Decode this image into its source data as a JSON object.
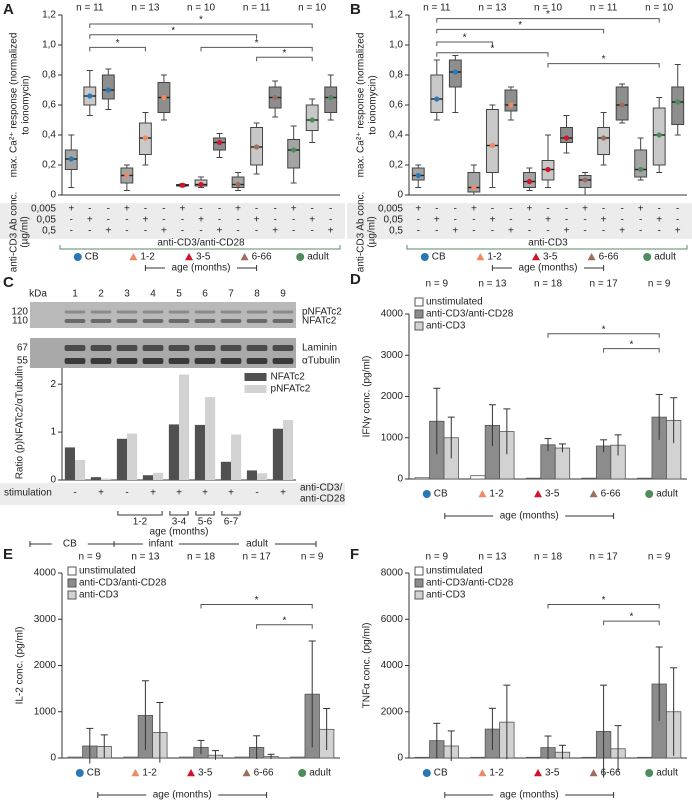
{
  "chart_data": [
    {
      "type": "box",
      "panel": "A",
      "ylabel": [
        "max. Ca²⁺ response (normalized",
        "to ionomycin)"
      ],
      "ylim": [
        0,
        1.2
      ],
      "yticks": [
        0,
        {
          "value": 0.2,
          "label": "0,2"
        },
        {
          "value": 0.4,
          "label": "0,4"
        },
        {
          "value": 0.6,
          "label": "0,6"
        },
        {
          "value": 0.8,
          "label": "0,8"
        },
        {
          "value": 1.0,
          "label": "1,0"
        },
        {
          "value": 1.2,
          "label": "1,2"
        }
      ],
      "series": [
        {
          "name": "CB",
          "color": "#2878b5",
          "marker": "circle",
          "n": "n = 11",
          "boxes": [
            {
              "min": 0.05,
              "q1": 0.17,
              "median": 0.24,
              "q3": 0.3,
              "max": 0.4
            },
            {
              "min": 0.53,
              "q1": 0.6,
              "median": 0.66,
              "q3": 0.72,
              "max": 0.83
            },
            {
              "min": 0.57,
              "q1": 0.64,
              "median": 0.7,
              "q3": 0.8,
              "max": 0.84
            }
          ]
        },
        {
          "name": "1-2",
          "color": "#ee8a62",
          "marker": "triangle",
          "n": "n = 13",
          "boxes": [
            {
              "min": 0.03,
              "q1": 0.08,
              "median": 0.13,
              "q3": 0.18,
              "max": 0.2
            },
            {
              "min": 0.2,
              "q1": 0.27,
              "median": 0.38,
              "q3": 0.48,
              "max": 0.55
            },
            {
              "min": 0.5,
              "q1": 0.55,
              "median": 0.65,
              "q3": 0.75,
              "max": 0.8
            }
          ]
        },
        {
          "name": "3-5",
          "color": "#d0142c",
          "marker": "triangle",
          "n": "n = 10",
          "boxes": [
            {
              "min": 0.055,
              "q1": 0.06,
              "median": 0.065,
              "q3": 0.07,
              "max": 0.075
            },
            {
              "min": 0.05,
              "q1": 0.06,
              "median": 0.07,
              "q3": 0.1,
              "max": 0.12
            },
            {
              "min": 0.25,
              "q1": 0.3,
              "median": 0.35,
              "q3": 0.38,
              "max": 0.41
            }
          ]
        },
        {
          "name": "6-66",
          "color": "#9c6e5e",
          "marker": "triangle",
          "n": "n = 11",
          "boxes": [
            {
              "min": 0.03,
              "q1": 0.05,
              "median": 0.07,
              "q3": 0.12,
              "max": 0.15
            },
            {
              "min": 0.14,
              "q1": 0.2,
              "median": 0.32,
              "q3": 0.45,
              "max": 0.48
            },
            {
              "min": 0.52,
              "q1": 0.58,
              "median": 0.65,
              "q3": 0.72,
              "max": 0.76
            }
          ]
        },
        {
          "name": "adult",
          "color": "#4e8c5c",
          "marker": "circle",
          "n": "n = 10",
          "boxes": [
            {
              "min": 0.08,
              "q1": 0.18,
              "median": 0.3,
              "q3": 0.37,
              "max": 0.46
            },
            {
              "min": 0.35,
              "q1": 0.43,
              "median": 0.5,
              "q3": 0.6,
              "max": 0.64
            },
            {
              "min": 0.5,
              "q1": 0.55,
              "median": 0.65,
              "q3": 0.72,
              "max": 0.8
            }
          ]
        }
      ],
      "condition_label": [
        "anti-CD3 Ab conc.",
        "(µg/ml)"
      ],
      "conditions": [
        {
          "name": "0,005",
          "marks": [
            "+",
            "-",
            "-",
            "+",
            "-",
            "-",
            "+",
            "-",
            "-",
            "+",
            "-",
            "-",
            "+",
            "-",
            "-"
          ]
        },
        {
          "name": "0,05",
          "marks": [
            "-",
            "+",
            "-",
            "-",
            "+",
            "-",
            "-",
            "+",
            "-",
            "-",
            "+",
            "-",
            "-",
            "+",
            "-"
          ]
        },
        {
          "name": "0,5",
          "marks": [
            "-",
            "-",
            "+",
            "-",
            "-",
            "+",
            "-",
            "-",
            "+",
            "-",
            "-",
            "+",
            "-",
            "-",
            "+"
          ]
        }
      ],
      "stimulus": "anti-CD3/anti-CD28",
      "xlabel": "age (months)",
      "annotations": [
        "*",
        "*",
        "*",
        "*",
        "*"
      ]
    },
    {
      "type": "box",
      "panel": "B",
      "ylabel": [
        "max. Ca²⁺ response (normalized",
        "to ionomycin)"
      ],
      "ylim": [
        0,
        1.2
      ],
      "yticks": [
        0,
        {
          "value": 0.2,
          "label": "0,2"
        },
        {
          "value": 0.4,
          "label": "0,4"
        },
        {
          "value": 0.6,
          "label": "0,6"
        },
        {
          "value": 0.8,
          "label": "0,8"
        },
        {
          "value": 1.0,
          "label": "1,0"
        },
        {
          "value": 1.2,
          "label": "1,2"
        }
      ],
      "series": [
        {
          "name": "CB",
          "color": "#2878b5",
          "marker": "circle",
          "n": "n = 11",
          "boxes": [
            {
              "min": 0.05,
              "q1": 0.1,
              "median": 0.13,
              "q3": 0.18,
              "max": 0.2
            },
            {
              "min": 0.5,
              "q1": 0.55,
              "median": 0.64,
              "q3": 0.8,
              "max": 0.9
            },
            {
              "min": 0.55,
              "q1": 0.72,
              "median": 0.82,
              "q3": 0.9,
              "max": 0.93
            }
          ]
        },
        {
          "name": "1-2",
          "color": "#ee8a62",
          "marker": "triangle",
          "n": "n = 13",
          "boxes": [
            {
              "min": 0.0,
              "q1": 0.02,
              "median": 0.05,
              "q3": 0.15,
              "max": 0.2
            },
            {
              "min": 0.05,
              "q1": 0.15,
              "median": 0.33,
              "q3": 0.57,
              "max": 0.6
            },
            {
              "min": 0.5,
              "q1": 0.56,
              "median": 0.6,
              "q3": 0.7,
              "max": 0.72
            }
          ]
        },
        {
          "name": "3-5",
          "color": "#d0142c",
          "marker": "triangle",
          "n": "n = 10",
          "boxes": [
            {
              "min": 0.03,
              "q1": 0.05,
              "median": 0.09,
              "q3": 0.15,
              "max": 0.18
            },
            {
              "min": 0.05,
              "q1": 0.1,
              "median": 0.17,
              "q3": 0.23,
              "max": 0.4
            },
            {
              "min": 0.28,
              "q1": 0.35,
              "median": 0.38,
              "q3": 0.45,
              "max": 0.53
            }
          ]
        },
        {
          "name": "6-66",
          "color": "#9c6e5e",
          "marker": "triangle",
          "n": "n = 11",
          "boxes": [
            {
              "min": 0.0,
              "q1": 0.05,
              "median": 0.1,
              "q3": 0.13,
              "max": 0.15
            },
            {
              "min": 0.2,
              "q1": 0.27,
              "median": 0.38,
              "q3": 0.45,
              "max": 0.55
            },
            {
              "min": 0.48,
              "q1": 0.5,
              "median": 0.6,
              "q3": 0.72,
              "max": 0.74
            }
          ]
        },
        {
          "name": "adult",
          "color": "#4e8c5c",
          "marker": "circle",
          "n": "n = 10",
          "boxes": [
            {
              "min": 0.1,
              "q1": 0.12,
              "median": 0.17,
              "q3": 0.3,
              "max": 0.38
            },
            {
              "min": 0.15,
              "q1": 0.2,
              "median": 0.4,
              "q3": 0.58,
              "max": 0.65
            },
            {
              "min": 0.4,
              "q1": 0.47,
              "median": 0.62,
              "q3": 0.72,
              "max": 0.87
            }
          ]
        }
      ],
      "condition_label": [
        "anti-CD3 Ab conc.",
        "(µg/ml)"
      ],
      "conditions": [
        {
          "name": "0,005",
          "marks": [
            "+",
            "-",
            "-",
            "+",
            "-",
            "-",
            "+",
            "-",
            "-",
            "+",
            "-",
            "-",
            "+",
            "-",
            "-"
          ]
        },
        {
          "name": "0,05",
          "marks": [
            "-",
            "+",
            "-",
            "-",
            "+",
            "-",
            "-",
            "+",
            "-",
            "-",
            "+",
            "-",
            "-",
            "+",
            "-"
          ]
        },
        {
          "name": "0,5",
          "marks": [
            "-",
            "-",
            "+",
            "-",
            "-",
            "+",
            "-",
            "-",
            "+",
            "-",
            "-",
            "+",
            "-",
            "-",
            "+"
          ]
        }
      ],
      "stimulus": "anti-CD3",
      "xlabel": "age (months)",
      "annotations": [
        "*",
        "*",
        "*",
        "*",
        "*"
      ]
    },
    {
      "type": "bar",
      "panel": "C",
      "ylabel": [
        "Ratio (p)NFATc2/αTubulin"
      ],
      "ylim": [
        0,
        2.4
      ],
      "yticks": [
        0,
        1,
        2
      ],
      "categories": [
        "1",
        "2",
        "3",
        "4",
        "5",
        "6",
        "7",
        "8",
        "9"
      ],
      "series": [
        {
          "name": "NFATc2",
          "color": "#505050",
          "values": [
            0.68,
            0.06,
            0.86,
            0.1,
            1.16,
            1.15,
            0.38,
            0.2,
            1.07
          ]
        },
        {
          "name": "pNFATc2",
          "color": "#d2d2d2",
          "values": [
            0.42,
            0.03,
            0.97,
            0.15,
            2.2,
            1.73,
            0.95,
            0.14,
            1.25
          ]
        }
      ],
      "blot": {
        "unit": "kDa",
        "markers": [
          "120",
          "110",
          "67",
          "55"
        ],
        "bands": [
          "pNFATc2",
          "NFATc2",
          "Laminin",
          "αTubulin"
        ]
      },
      "stimulation_label": "stimulation",
      "stimulation": [
        "-",
        "+",
        "-",
        "+",
        "+",
        "+",
        "+",
        "-",
        "+"
      ],
      "stimulus": [
        "anti-CD3/",
        "anti-CD28"
      ],
      "age_ranges": [
        "1-2",
        "3-4",
        "5-6",
        "6-7"
      ],
      "xlabel": "age (months)",
      "cohorts": [
        "CB",
        "infant",
        "adult"
      ]
    },
    {
      "type": "bar",
      "panel": "D",
      "ylabel": [
        "IFNγ conc.  (pg/ml)"
      ],
      "ylim": [
        0,
        4000
      ],
      "yticks": [
        0,
        1000,
        2000,
        3000,
        4000
      ],
      "categories": [
        "CB",
        "1-2",
        "3-5",
        "6-66",
        "adult"
      ],
      "category_colors": [
        "#2878b5",
        "#ee8a62",
        "#d0142c",
        "#9c6e5e",
        "#4e8c5c"
      ],
      "category_markers": [
        "circle",
        "triangle",
        "triangle",
        "triangle",
        "circle"
      ],
      "n_labels": [
        "n = 9",
        "n = 13",
        "n = 18",
        "n = 17",
        "n = 9"
      ],
      "series": [
        {
          "name": "unstimulated",
          "color": "#ffffff",
          "values": [
            30,
            80,
            20,
            20,
            20
          ]
        },
        {
          "name": "anti-CD3/anti-CD28",
          "color": "#8c8c8c",
          "values": [
            1400,
            1300,
            830,
            800,
            1500
          ],
          "errors": [
            800,
            500,
            150,
            150,
            550
          ]
        },
        {
          "name": "anti-CD3",
          "color": "#d2d2d2",
          "values": [
            1000,
            1150,
            750,
            820,
            1420
          ],
          "errors": [
            500,
            550,
            100,
            250,
            550
          ]
        }
      ],
      "xlabel": "age (months)",
      "annotations": [
        "*",
        "*"
      ]
    },
    {
      "type": "bar",
      "panel": "E",
      "ylabel": [
        "IL-2 conc.  (pg/ml)"
      ],
      "ylim": [
        0,
        4000
      ],
      "yticks": [
        0,
        1000,
        2000,
        3000,
        4000
      ],
      "categories": [
        "CB",
        "1-2",
        "3-5",
        "6-66",
        "adult"
      ],
      "category_colors": [
        "#2878b5",
        "#ee8a62",
        "#d0142c",
        "#9c6e5e",
        "#4e8c5c"
      ],
      "category_markers": [
        "circle",
        "triangle",
        "triangle",
        "triangle",
        "circle"
      ],
      "n_labels": [
        "n = 9",
        "n = 13",
        "n = 18",
        "n = 17",
        "n = 9"
      ],
      "series": [
        {
          "name": "unstimulated",
          "color": "#ffffff",
          "values": [
            20,
            20,
            20,
            20,
            20
          ]
        },
        {
          "name": "anti-CD3/anti-CD28",
          "color": "#8c8c8c",
          "values": [
            260,
            920,
            230,
            230,
            1380
          ],
          "errors": [
            380,
            750,
            150,
            250,
            1150
          ]
        },
        {
          "name": "anti-CD3",
          "color": "#d2d2d2",
          "values": [
            250,
            550,
            60,
            30,
            620
          ],
          "errors": [
            250,
            650,
            100,
            50,
            450
          ]
        }
      ],
      "xlabel": "age (months)",
      "annotations": [
        "*",
        "*"
      ]
    },
    {
      "type": "bar",
      "panel": "F",
      "ylabel": [
        "TNFα conc.  (pg/ml)"
      ],
      "ylim": [
        0,
        8000
      ],
      "yticks": [
        0,
        2000,
        4000,
        6000,
        8000
      ],
      "categories": [
        "CB",
        "1-2",
        "3-5",
        "6-66",
        "adult"
      ],
      "category_colors": [
        "#2878b5",
        "#ee8a62",
        "#d0142c",
        "#9c6e5e",
        "#4e8c5c"
      ],
      "category_markers": [
        "circle",
        "triangle",
        "triangle",
        "triangle",
        "circle"
      ],
      "n_labels": [
        "n = 9",
        "n = 13",
        "n = 18",
        "n = 17",
        "n = 9"
      ],
      "series": [
        {
          "name": "unstimulated",
          "color": "#ffffff",
          "values": [
            30,
            30,
            30,
            30,
            30
          ]
        },
        {
          "name": "anti-CD3/anti-CD28",
          "color": "#8c8c8c",
          "values": [
            750,
            1250,
            450,
            1150,
            3200
          ],
          "errors": [
            750,
            900,
            500,
            2000,
            1600
          ]
        },
        {
          "name": "anti-CD3",
          "color": "#d2d2d2",
          "values": [
            520,
            1550,
            250,
            400,
            2000
          ],
          "errors": [
            650,
            1600,
            300,
            1000,
            1900
          ]
        }
      ],
      "xlabel": "age (months)",
      "annotations": [
        "*",
        "*"
      ]
    }
  ]
}
